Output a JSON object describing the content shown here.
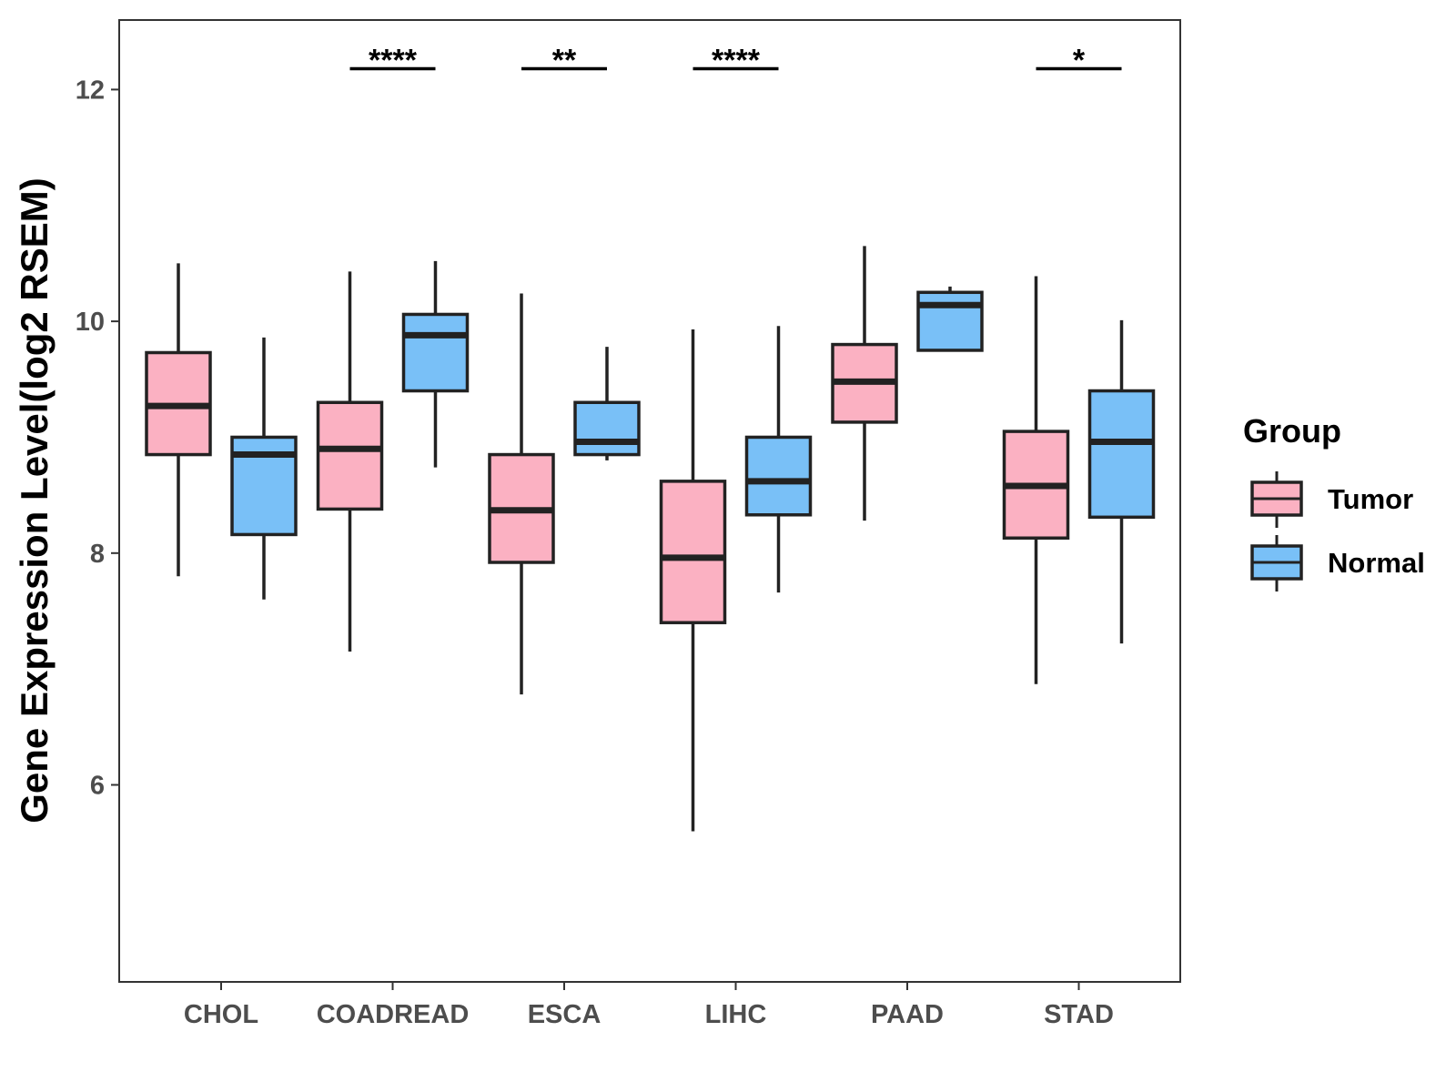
{
  "chart_data": {
    "type": "boxplot",
    "title": "",
    "xlabel": "",
    "ylabel": "Gene Expression Level(log2 RSEM)",
    "ylim": [
      4.3,
      12.6
    ],
    "yticks": [
      6,
      8,
      10,
      12
    ],
    "categories": [
      "CHOL",
      "COADREAD",
      "ESCA",
      "LIHC",
      "PAAD",
      "STAD"
    ],
    "series": [
      {
        "name": "Tumor",
        "color": "#FBB1C2",
        "boxes": [
          {
            "category": "CHOL",
            "whisker_low": 7.8,
            "q1": 8.85,
            "median": 9.27,
            "q3": 9.73,
            "whisker_high": 10.5
          },
          {
            "category": "COADREAD",
            "whisker_low": 7.15,
            "q1": 8.38,
            "median": 8.9,
            "q3": 9.3,
            "whisker_high": 10.43
          },
          {
            "category": "ESCA",
            "whisker_low": 6.78,
            "q1": 7.92,
            "median": 8.37,
            "q3": 8.85,
            "whisker_high": 10.24
          },
          {
            "category": "LIHC",
            "whisker_low": 5.6,
            "q1": 7.4,
            "median": 7.96,
            "q3": 8.62,
            "whisker_high": 9.93
          },
          {
            "category": "PAAD",
            "whisker_low": 8.28,
            "q1": 9.13,
            "median": 9.48,
            "q3": 9.8,
            "whisker_high": 10.65
          },
          {
            "category": "STAD",
            "whisker_low": 6.87,
            "q1": 8.13,
            "median": 8.58,
            "q3": 9.05,
            "whisker_high": 10.39
          }
        ]
      },
      {
        "name": "Normal",
        "color": "#79C0F7",
        "boxes": [
          {
            "category": "CHOL",
            "whisker_low": 7.6,
            "q1": 8.16,
            "median": 8.85,
            "q3": 9.0,
            "whisker_high": 9.86
          },
          {
            "category": "COADREAD",
            "whisker_low": 8.74,
            "q1": 9.4,
            "median": 9.88,
            "q3": 10.06,
            "whisker_high": 10.52
          },
          {
            "category": "ESCA",
            "whisker_low": 8.8,
            "q1": 8.85,
            "median": 8.96,
            "q3": 9.3,
            "whisker_high": 9.78
          },
          {
            "category": "LIHC",
            "whisker_low": 7.66,
            "q1": 8.33,
            "median": 8.62,
            "q3": 9.0,
            "whisker_high": 9.96
          },
          {
            "category": "PAAD",
            "whisker_low": 9.75,
            "q1": 9.75,
            "median": 10.14,
            "q3": 10.25,
            "whisker_high": 10.3
          },
          {
            "category": "STAD",
            "whisker_low": 7.22,
            "q1": 8.31,
            "median": 8.96,
            "q3": 9.4,
            "whisker_high": 10.01
          }
        ]
      }
    ],
    "significance": [
      {
        "category": "CHOL",
        "label": ""
      },
      {
        "category": "COADREAD",
        "label": "****"
      },
      {
        "category": "ESCA",
        "label": "**"
      },
      {
        "category": "LIHC",
        "label": "****"
      },
      {
        "category": "PAAD",
        "label": ""
      },
      {
        "category": "STAD",
        "label": "*"
      }
    ],
    "significance_y": 12.18,
    "legend": {
      "title": "Group",
      "position": "right",
      "entries": [
        "Tumor",
        "Normal"
      ]
    },
    "grid": false
  }
}
